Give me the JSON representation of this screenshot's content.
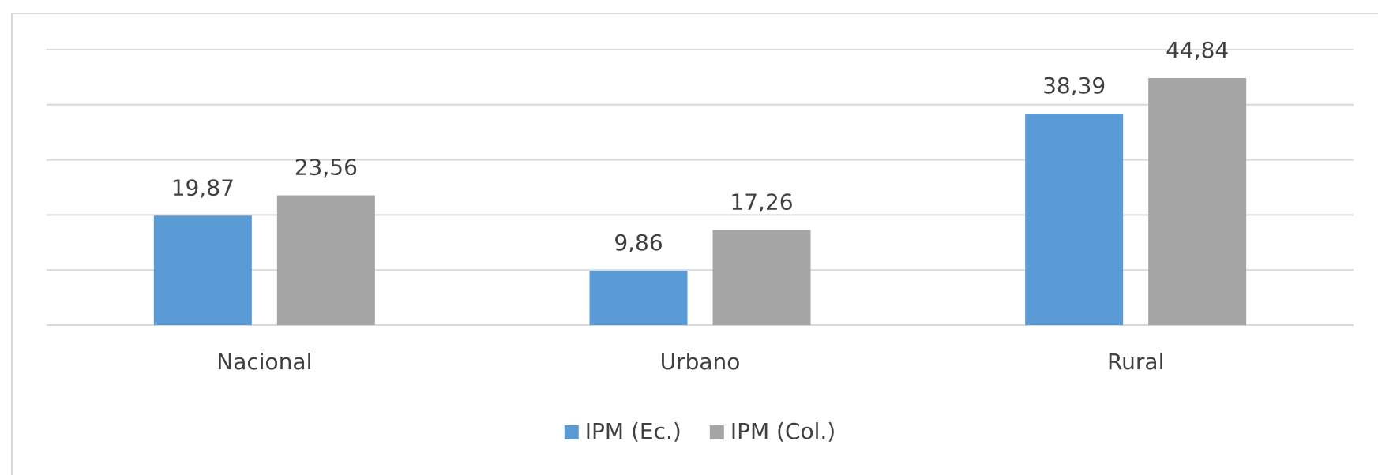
{
  "chart_data": {
    "type": "bar",
    "categories": [
      "Nacional",
      "Urbano",
      "Rural"
    ],
    "series": [
      {
        "name": "IPM (Ec.)",
        "color": "#5b9bd5",
        "values": [
          19.87,
          9.86,
          38.39
        ],
        "value_labels": [
          "19,87",
          "9,86",
          "38,39"
        ]
      },
      {
        "name": "IPM (Col.)",
        "color": "#a5a5a5",
        "values": [
          23.56,
          17.26,
          44.84
        ],
        "value_labels": [
          "23,56",
          "17,26",
          "44,84"
        ]
      }
    ],
    "ylim": [
      0,
      50
    ],
    "yticks": [
      0,
      10,
      20,
      30,
      40,
      50
    ],
    "grid": true,
    "legend": "bottom"
  }
}
